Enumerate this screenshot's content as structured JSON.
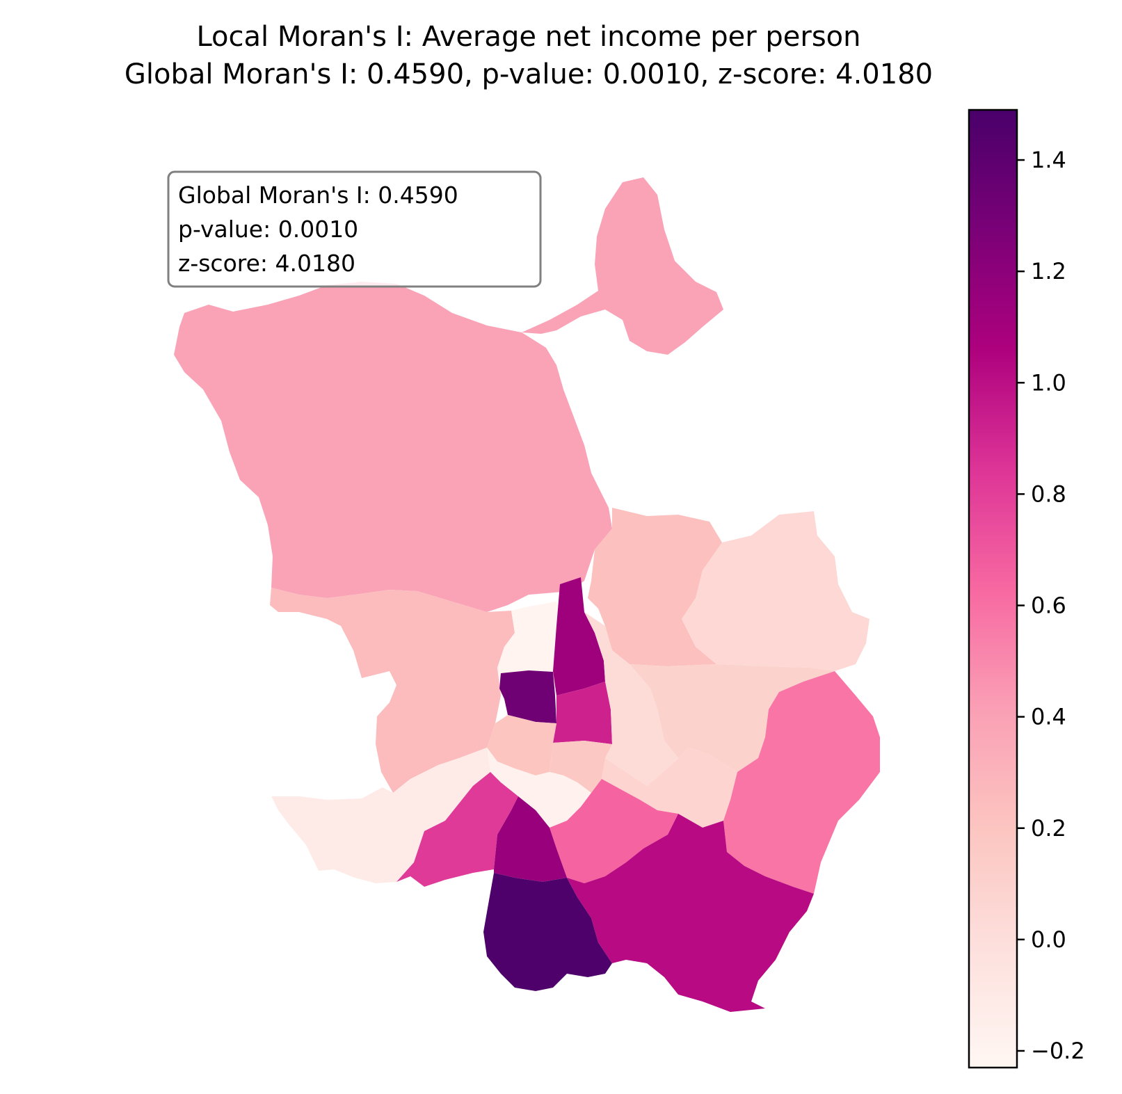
{
  "title": {
    "line1": "Local Moran's I: Average net income per person",
    "line2": "Global Moran's I: 0.4590, p-value: 0.0010, z-score: 4.0180"
  },
  "stats_box": {
    "line1": "Global Moran's I: 0.4590",
    "line2": "p-value: 0.0010",
    "line3": "z-score: 4.0180"
  },
  "colorbar": {
    "colormap": "RdPu",
    "min": -0.23,
    "max": 1.49,
    "ticks": [
      {
        "value": -0.2,
        "label": "−0.2"
      },
      {
        "value": 0.0,
        "label": "0.0"
      },
      {
        "value": 0.2,
        "label": "0.2"
      },
      {
        "value": 0.4,
        "label": "0.4"
      },
      {
        "value": 0.6,
        "label": "0.6"
      },
      {
        "value": 0.8,
        "label": "0.8"
      },
      {
        "value": 1.0,
        "label": "1.0"
      },
      {
        "value": 1.2,
        "label": "1.2"
      },
      {
        "value": 1.4,
        "label": "1.4"
      }
    ]
  },
  "chart_data": {
    "type": "choropleth",
    "title": "Local Moran's I: Average net income per person",
    "subtitle": "Global Moran's I: 0.4590, p-value: 0.0010, z-score: 4.0180",
    "value_range": [
      -0.23,
      1.49
    ],
    "regions": [
      {
        "id": "north-large",
        "value": 0.4
      },
      {
        "id": "north-east-lobe",
        "value": 0.4
      },
      {
        "id": "west-central",
        "value": 0.25
      },
      {
        "id": "north-central",
        "value": 0.23
      },
      {
        "id": "north-east",
        "value": 0.05
      },
      {
        "id": "east-central",
        "value": 0.1
      },
      {
        "id": "center-north-white",
        "value": -0.2
      },
      {
        "id": "center-strip",
        "value": 1.12
      },
      {
        "id": "center-dark",
        "value": 1.32
      },
      {
        "id": "center-magenta",
        "value": 0.92
      },
      {
        "id": "center-east-light",
        "value": 0.02
      },
      {
        "id": "center-small",
        "value": 0.2
      },
      {
        "id": "center-mid",
        "value": 0.18
      },
      {
        "id": "south-center-white",
        "value": -0.18
      },
      {
        "id": "south-west-white",
        "value": -0.12
      },
      {
        "id": "south-east-pale",
        "value": 0.08
      },
      {
        "id": "east-pink",
        "value": 0.58
      },
      {
        "id": "south-center-pink",
        "value": 0.65
      },
      {
        "id": "south-magenta",
        "value": 0.82
      },
      {
        "id": "south-purple",
        "value": 1.15
      },
      {
        "id": "south-deep",
        "value": 1.47
      },
      {
        "id": "south-east-large",
        "value": 1.02
      }
    ]
  }
}
